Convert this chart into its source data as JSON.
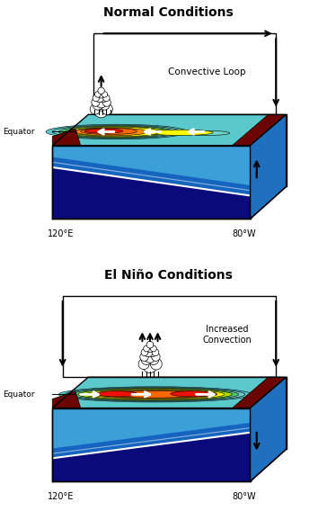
{
  "title1": "Normal Conditions",
  "title2": "El Niño Conditions",
  "label_equator": "Equator",
  "label_120E": "120°E",
  "label_80W": "80°W",
  "label_convective_loop": "Convective Loop",
  "label_increased_convection": "Increased\nConvection",
  "bg_color": "#ffffff",
  "fig_width": 3.74,
  "fig_height": 5.78,
  "dpi": 100
}
